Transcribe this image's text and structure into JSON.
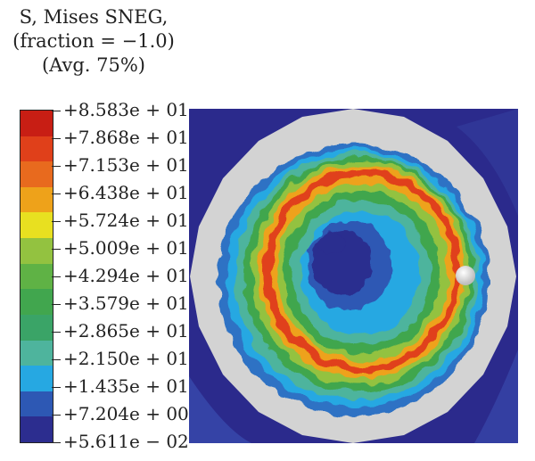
{
  "legend": {
    "title_lines": [
      "S, Mises SNEG,",
      "(fraction = −1.0)",
      "(Avg. 75%)"
    ],
    "bands": [
      {
        "color": "#c81e14"
      },
      {
        "color": "#e0401a"
      },
      {
        "color": "#e86a1e"
      },
      {
        "color": "#eea21a"
      },
      {
        "color": "#e8e020"
      },
      {
        "color": "#93c240"
      },
      {
        "color": "#5fb245"
      },
      {
        "color": "#41a64e"
      },
      {
        "color": "#3aa467"
      },
      {
        "color": "#4eb49d"
      },
      {
        "color": "#26a8e2"
      },
      {
        "color": "#2d58b4"
      },
      {
        "color": "#2c2d8f"
      }
    ],
    "values": [
      "+8.583e + 01",
      "+7.868e + 01",
      "+7.153e + 01",
      "+6.438e + 01",
      "+5.724e + 01",
      "+5.009e + 01",
      "+4.294e + 01",
      "+3.579e + 01",
      "+2.865e + 01",
      "+2.150e + 01",
      "+1.435e + 01",
      "+7.204e + 00",
      "+5.611e − 02"
    ]
  },
  "colors": {
    "background_field": "#2b2a8c",
    "outer_ring": "#d3d3d3",
    "ball": "#f2f2f2"
  }
}
